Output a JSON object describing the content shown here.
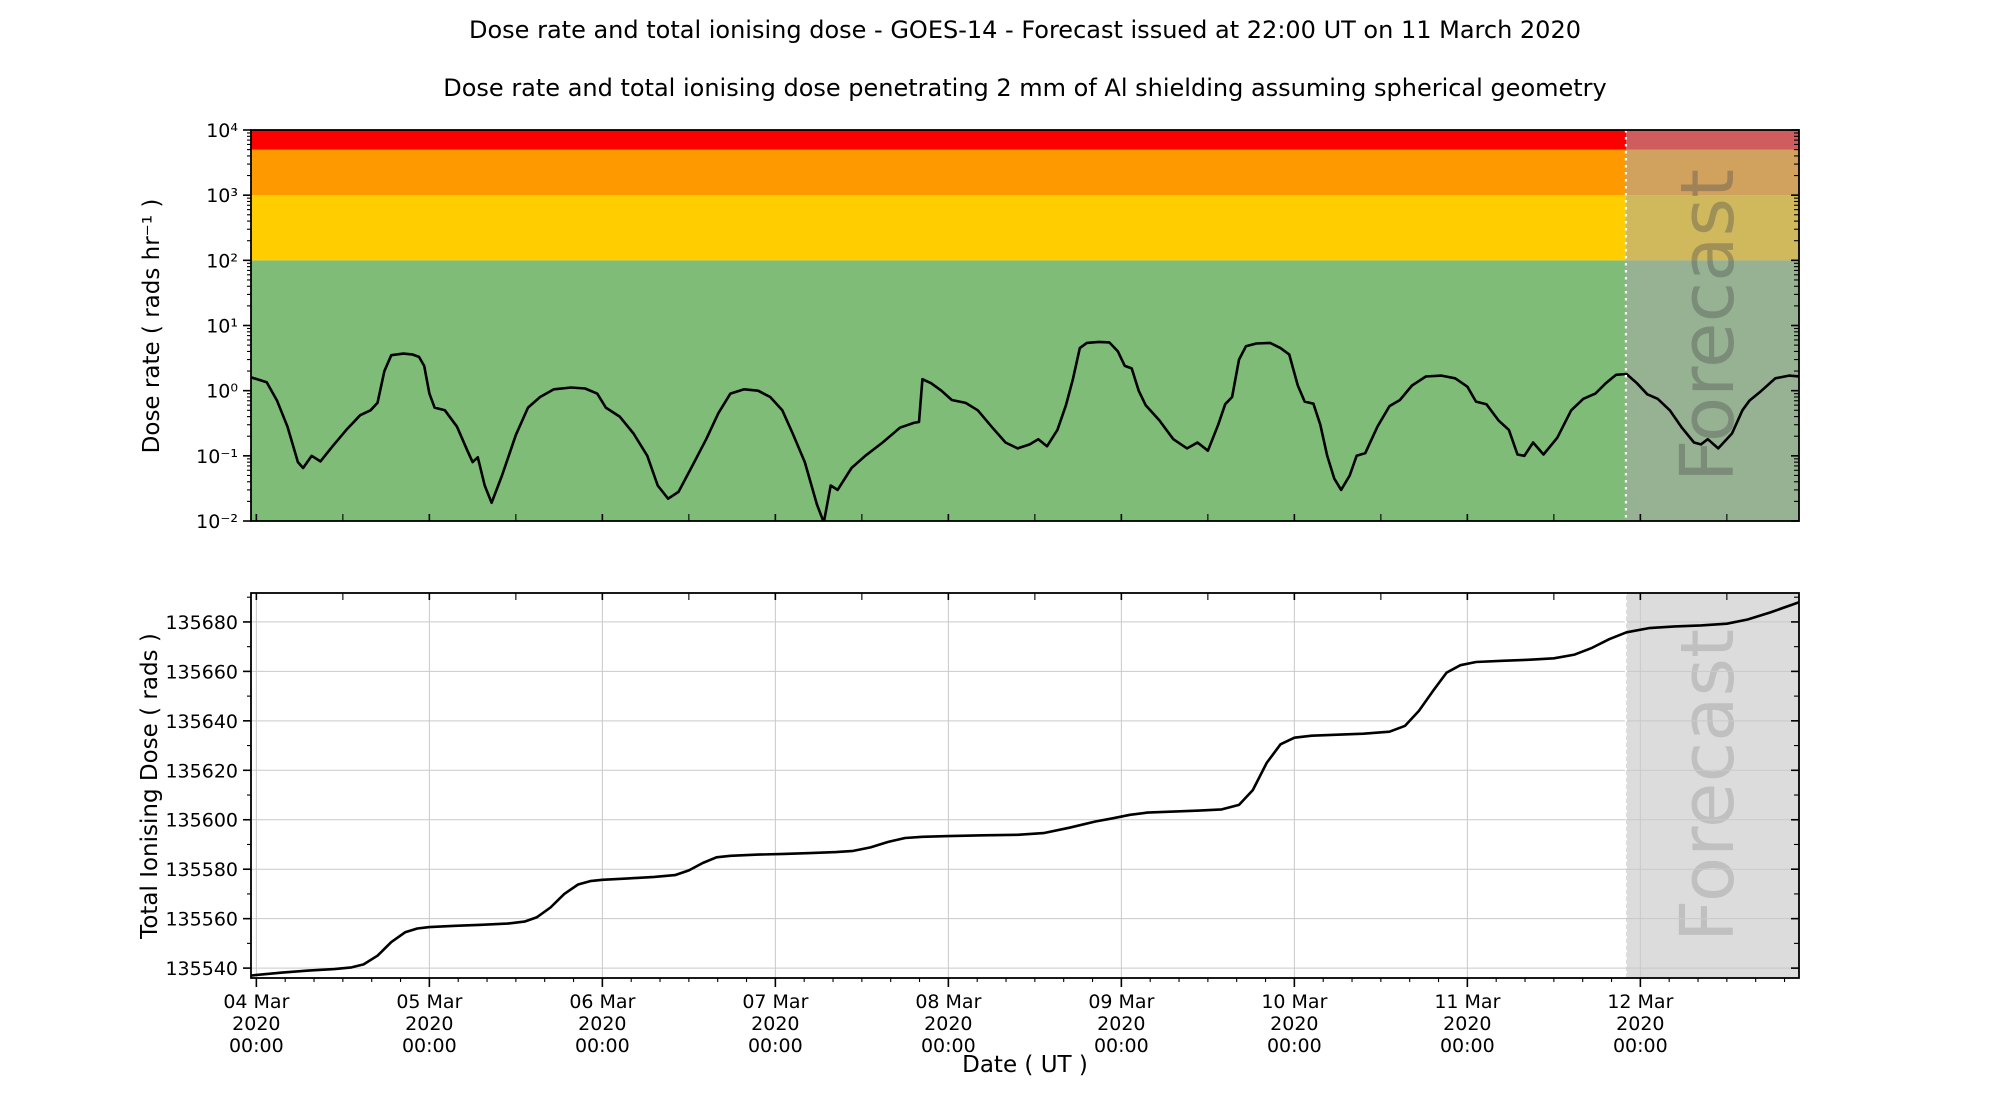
{
  "title": "Dose rate and total ionising dose - GOES-14 - Forecast issued at 22:00 UT on 11 March 2020",
  "subtitle": "Dose rate and total ionising dose penetrating 2 mm of Al shielding assuming spherical geometry",
  "x_axis": {
    "label": "Date ( UT )",
    "range_days": [
      -0.031,
      8.917
    ],
    "epoch": "04 Mar 2020 00:00 UT",
    "year_line": "2020",
    "time_line": "00:00",
    "ticks": [
      {
        "day": 0,
        "lines": [
          "04 Mar",
          "2020",
          "00:00"
        ]
      },
      {
        "day": 1,
        "lines": [
          "05 Mar",
          "2020",
          "00:00"
        ]
      },
      {
        "day": 2,
        "lines": [
          "06 Mar",
          "2020",
          "00:00"
        ]
      },
      {
        "day": 3,
        "lines": [
          "07 Mar",
          "2020",
          "00:00"
        ]
      },
      {
        "day": 4,
        "lines": [
          "08 Mar",
          "2020",
          "00:00"
        ]
      },
      {
        "day": 5,
        "lines": [
          "09 Mar",
          "2020",
          "00:00"
        ]
      },
      {
        "day": 6,
        "lines": [
          "10 Mar",
          "2020",
          "00:00"
        ]
      },
      {
        "day": 7,
        "lines": [
          "11 Mar",
          "2020",
          "00:00"
        ]
      },
      {
        "day": 8,
        "lines": [
          "12 Mar",
          "2020",
          "00:00"
        ]
      }
    ]
  },
  "forecast": {
    "watermark": "Forecast",
    "start_day": 7.9167,
    "issued": "22:00 UT on 11 March 2020",
    "divider_color": "#ffffff",
    "top_overlay_color": "rgba(170,170,170,0.55)",
    "bottom_fill_color": "#dcdcdc",
    "top_text_color": "rgba(80,80,80,0.38)",
    "bottom_text_color": "#c0c0c0"
  },
  "colors": {
    "curve": "#000000",
    "grid": "#c9c9c9",
    "spine": "#000000",
    "band_green": "#7ebc78",
    "band_gold": "#ffcd00",
    "band_orange": "#fe9900",
    "band_red": "#fd0000"
  },
  "chart_data": [
    {
      "type": "line",
      "panel": "dose-rate",
      "ylabel": "Dose rate ( rads hr⁻¹ )",
      "yscale": "log",
      "ylim": [
        0.01,
        10000
      ],
      "grid": false,
      "legend": "none",
      "yticks": [
        {
          "v": 10000,
          "label": "10⁴"
        },
        {
          "v": 1000,
          "label": "10³"
        },
        {
          "v": 100,
          "label": "10²"
        },
        {
          "v": 10,
          "label": "10¹"
        },
        {
          "v": 1,
          "label": "10⁰"
        },
        {
          "v": 0.1,
          "label": "10⁻¹"
        },
        {
          "v": 0.01,
          "label": "10⁻²"
        }
      ],
      "bands": [
        {
          "from": 0.01,
          "to": 100,
          "color_key": "band_green"
        },
        {
          "from": 100,
          "to": 1000,
          "color_key": "band_gold"
        },
        {
          "from": 1000,
          "to": 5000,
          "color_key": "band_orange"
        },
        {
          "from": 5000,
          "to": 10000,
          "color_key": "band_red"
        }
      ],
      "series": {
        "name": "GOES-14 dose rate",
        "x_days": [
          -0.03,
          0.06,
          0.12,
          0.18,
          0.24,
          0.27,
          0.32,
          0.37,
          0.44,
          0.52,
          0.6,
          0.66,
          0.7,
          0.74,
          0.78,
          0.85,
          0.9,
          0.94,
          0.97,
          1.0,
          1.03,
          1.09,
          1.16,
          1.22,
          1.25,
          1.28,
          1.32,
          1.36,
          1.42,
          1.5,
          1.57,
          1.64,
          1.72,
          1.82,
          1.9,
          1.97,
          2.02,
          2.1,
          2.18,
          2.26,
          2.32,
          2.38,
          2.44,
          2.52,
          2.6,
          2.67,
          2.74,
          2.82,
          2.9,
          2.97,
          3.04,
          3.1,
          3.17,
          3.24,
          3.28,
          3.32,
          3.36,
          3.44,
          3.52,
          3.62,
          3.72,
          3.8,
          3.83,
          3.85,
          3.9,
          3.96,
          4.02,
          4.1,
          4.17,
          4.25,
          4.33,
          4.4,
          4.47,
          4.52,
          4.57,
          4.63,
          4.68,
          4.72,
          4.76,
          4.8,
          4.87,
          4.93,
          4.98,
          5.02,
          5.06,
          5.1,
          5.14,
          5.22,
          5.3,
          5.38,
          5.44,
          5.5,
          5.56,
          5.6,
          5.64,
          5.68,
          5.72,
          5.78,
          5.86,
          5.92,
          5.97,
          6.02,
          6.06,
          6.11,
          6.15,
          6.19,
          6.23,
          6.27,
          6.32,
          6.36,
          6.41,
          6.48,
          6.55,
          6.61,
          6.68,
          6.76,
          6.85,
          6.93,
          7.0,
          7.05,
          7.11,
          7.18,
          7.24,
          7.29,
          7.33,
          7.38,
          7.44,
          7.52,
          7.6,
          7.67,
          7.74,
          7.8,
          7.86,
          7.92,
          7.98,
          8.04,
          8.1,
          8.17,
          8.24,
          8.31,
          8.35,
          8.39,
          8.45,
          8.53,
          8.59,
          8.63,
          8.7,
          8.78,
          8.86,
          8.92,
          8.98
        ],
        "y": [
          1.6,
          1.35,
          0.7,
          0.28,
          0.08,
          0.065,
          0.1,
          0.082,
          0.14,
          0.25,
          0.42,
          0.5,
          0.65,
          2.0,
          3.5,
          3.7,
          3.6,
          3.3,
          2.4,
          0.9,
          0.55,
          0.5,
          0.28,
          0.12,
          0.08,
          0.095,
          0.035,
          0.019,
          0.05,
          0.21,
          0.55,
          0.8,
          1.05,
          1.12,
          1.08,
          0.9,
          0.55,
          0.4,
          0.22,
          0.1,
          0.035,
          0.022,
          0.028,
          0.07,
          0.18,
          0.45,
          0.9,
          1.05,
          1.0,
          0.8,
          0.5,
          0.22,
          0.08,
          0.018,
          0.0095,
          0.035,
          0.03,
          0.065,
          0.1,
          0.16,
          0.27,
          0.32,
          0.33,
          1.5,
          1.3,
          1.0,
          0.72,
          0.65,
          0.5,
          0.28,
          0.16,
          0.13,
          0.15,
          0.18,
          0.14,
          0.25,
          0.6,
          1.5,
          4.5,
          5.4,
          5.6,
          5.5,
          4.0,
          2.4,
          2.2,
          1.0,
          0.6,
          0.35,
          0.18,
          0.13,
          0.16,
          0.12,
          0.3,
          0.62,
          0.8,
          3.0,
          4.8,
          5.3,
          5.4,
          4.5,
          3.6,
          1.2,
          0.68,
          0.63,
          0.3,
          0.1,
          0.045,
          0.03,
          0.05,
          0.1,
          0.11,
          0.28,
          0.58,
          0.72,
          1.2,
          1.65,
          1.7,
          1.55,
          1.15,
          0.68,
          0.62,
          0.35,
          0.25,
          0.105,
          0.1,
          0.16,
          0.105,
          0.19,
          0.5,
          0.75,
          0.9,
          1.3,
          1.75,
          1.8,
          1.3,
          0.88,
          0.75,
          0.5,
          0.27,
          0.16,
          0.15,
          0.18,
          0.13,
          0.22,
          0.5,
          0.7,
          1.0,
          1.55,
          1.7,
          1.65,
          1.5
        ]
      }
    },
    {
      "type": "line",
      "panel": "total-ionising-dose",
      "ylabel": "Total Ionising Dose ( rads )",
      "yscale": "linear",
      "ylim": [
        135536,
        135691.7
      ],
      "grid": true,
      "legend": "none",
      "yticks": [
        135540,
        135560,
        135580,
        135600,
        135620,
        135640,
        135660,
        135680
      ],
      "series": {
        "name": "GOES-14 total ionising dose",
        "x_days": [
          -0.03,
          0.15,
          0.3,
          0.45,
          0.55,
          0.62,
          0.7,
          0.78,
          0.86,
          0.93,
          1.0,
          1.15,
          1.3,
          1.45,
          1.55,
          1.62,
          1.7,
          1.78,
          1.86,
          1.93,
          2.0,
          2.15,
          2.3,
          2.42,
          2.5,
          2.58,
          2.66,
          2.74,
          2.9,
          3.05,
          3.2,
          3.35,
          3.45,
          3.55,
          3.65,
          3.75,
          3.85,
          4.0,
          4.2,
          4.4,
          4.55,
          4.7,
          4.85,
          4.95,
          5.05,
          5.15,
          5.3,
          5.45,
          5.58,
          5.68,
          5.76,
          5.84,
          5.92,
          6.0,
          6.1,
          6.25,
          6.4,
          6.55,
          6.64,
          6.72,
          6.8,
          6.88,
          6.96,
          7.05,
          7.2,
          7.35,
          7.5,
          7.62,
          7.72,
          7.82,
          7.92,
          8.05,
          8.2,
          8.35,
          8.5,
          8.62,
          8.75,
          8.87,
          8.98
        ],
        "y": [
          135537.0,
          135538.2,
          135539.0,
          135539.6,
          135540.3,
          135541.5,
          135545.0,
          135550.5,
          135554.5,
          135556.0,
          135556.6,
          135557.1,
          135557.5,
          135558.0,
          135558.8,
          135560.5,
          135564.5,
          135570.0,
          135573.8,
          135575.2,
          135575.7,
          135576.3,
          135576.9,
          135577.6,
          135579.5,
          135582.5,
          135584.8,
          135585.4,
          135585.9,
          135586.2,
          135586.5,
          135586.9,
          135587.4,
          135588.8,
          135591.0,
          135592.6,
          135593.1,
          135593.4,
          135593.7,
          135593.9,
          135594.6,
          135596.8,
          135599.3,
          135600.6,
          135602.0,
          135602.9,
          135603.3,
          135603.7,
          135604.2,
          135606.0,
          135612.0,
          135623.0,
          135630.5,
          135633.2,
          135634.0,
          135634.4,
          135634.8,
          135635.6,
          135638.0,
          135644.0,
          135652.0,
          135659.5,
          135662.5,
          135663.8,
          135664.3,
          135664.7,
          135665.3,
          135666.8,
          135669.5,
          135673.0,
          135675.8,
          135677.5,
          135678.2,
          135678.6,
          135679.3,
          135681.0,
          135683.8,
          135686.8,
          135689.5
        ]
      }
    }
  ]
}
